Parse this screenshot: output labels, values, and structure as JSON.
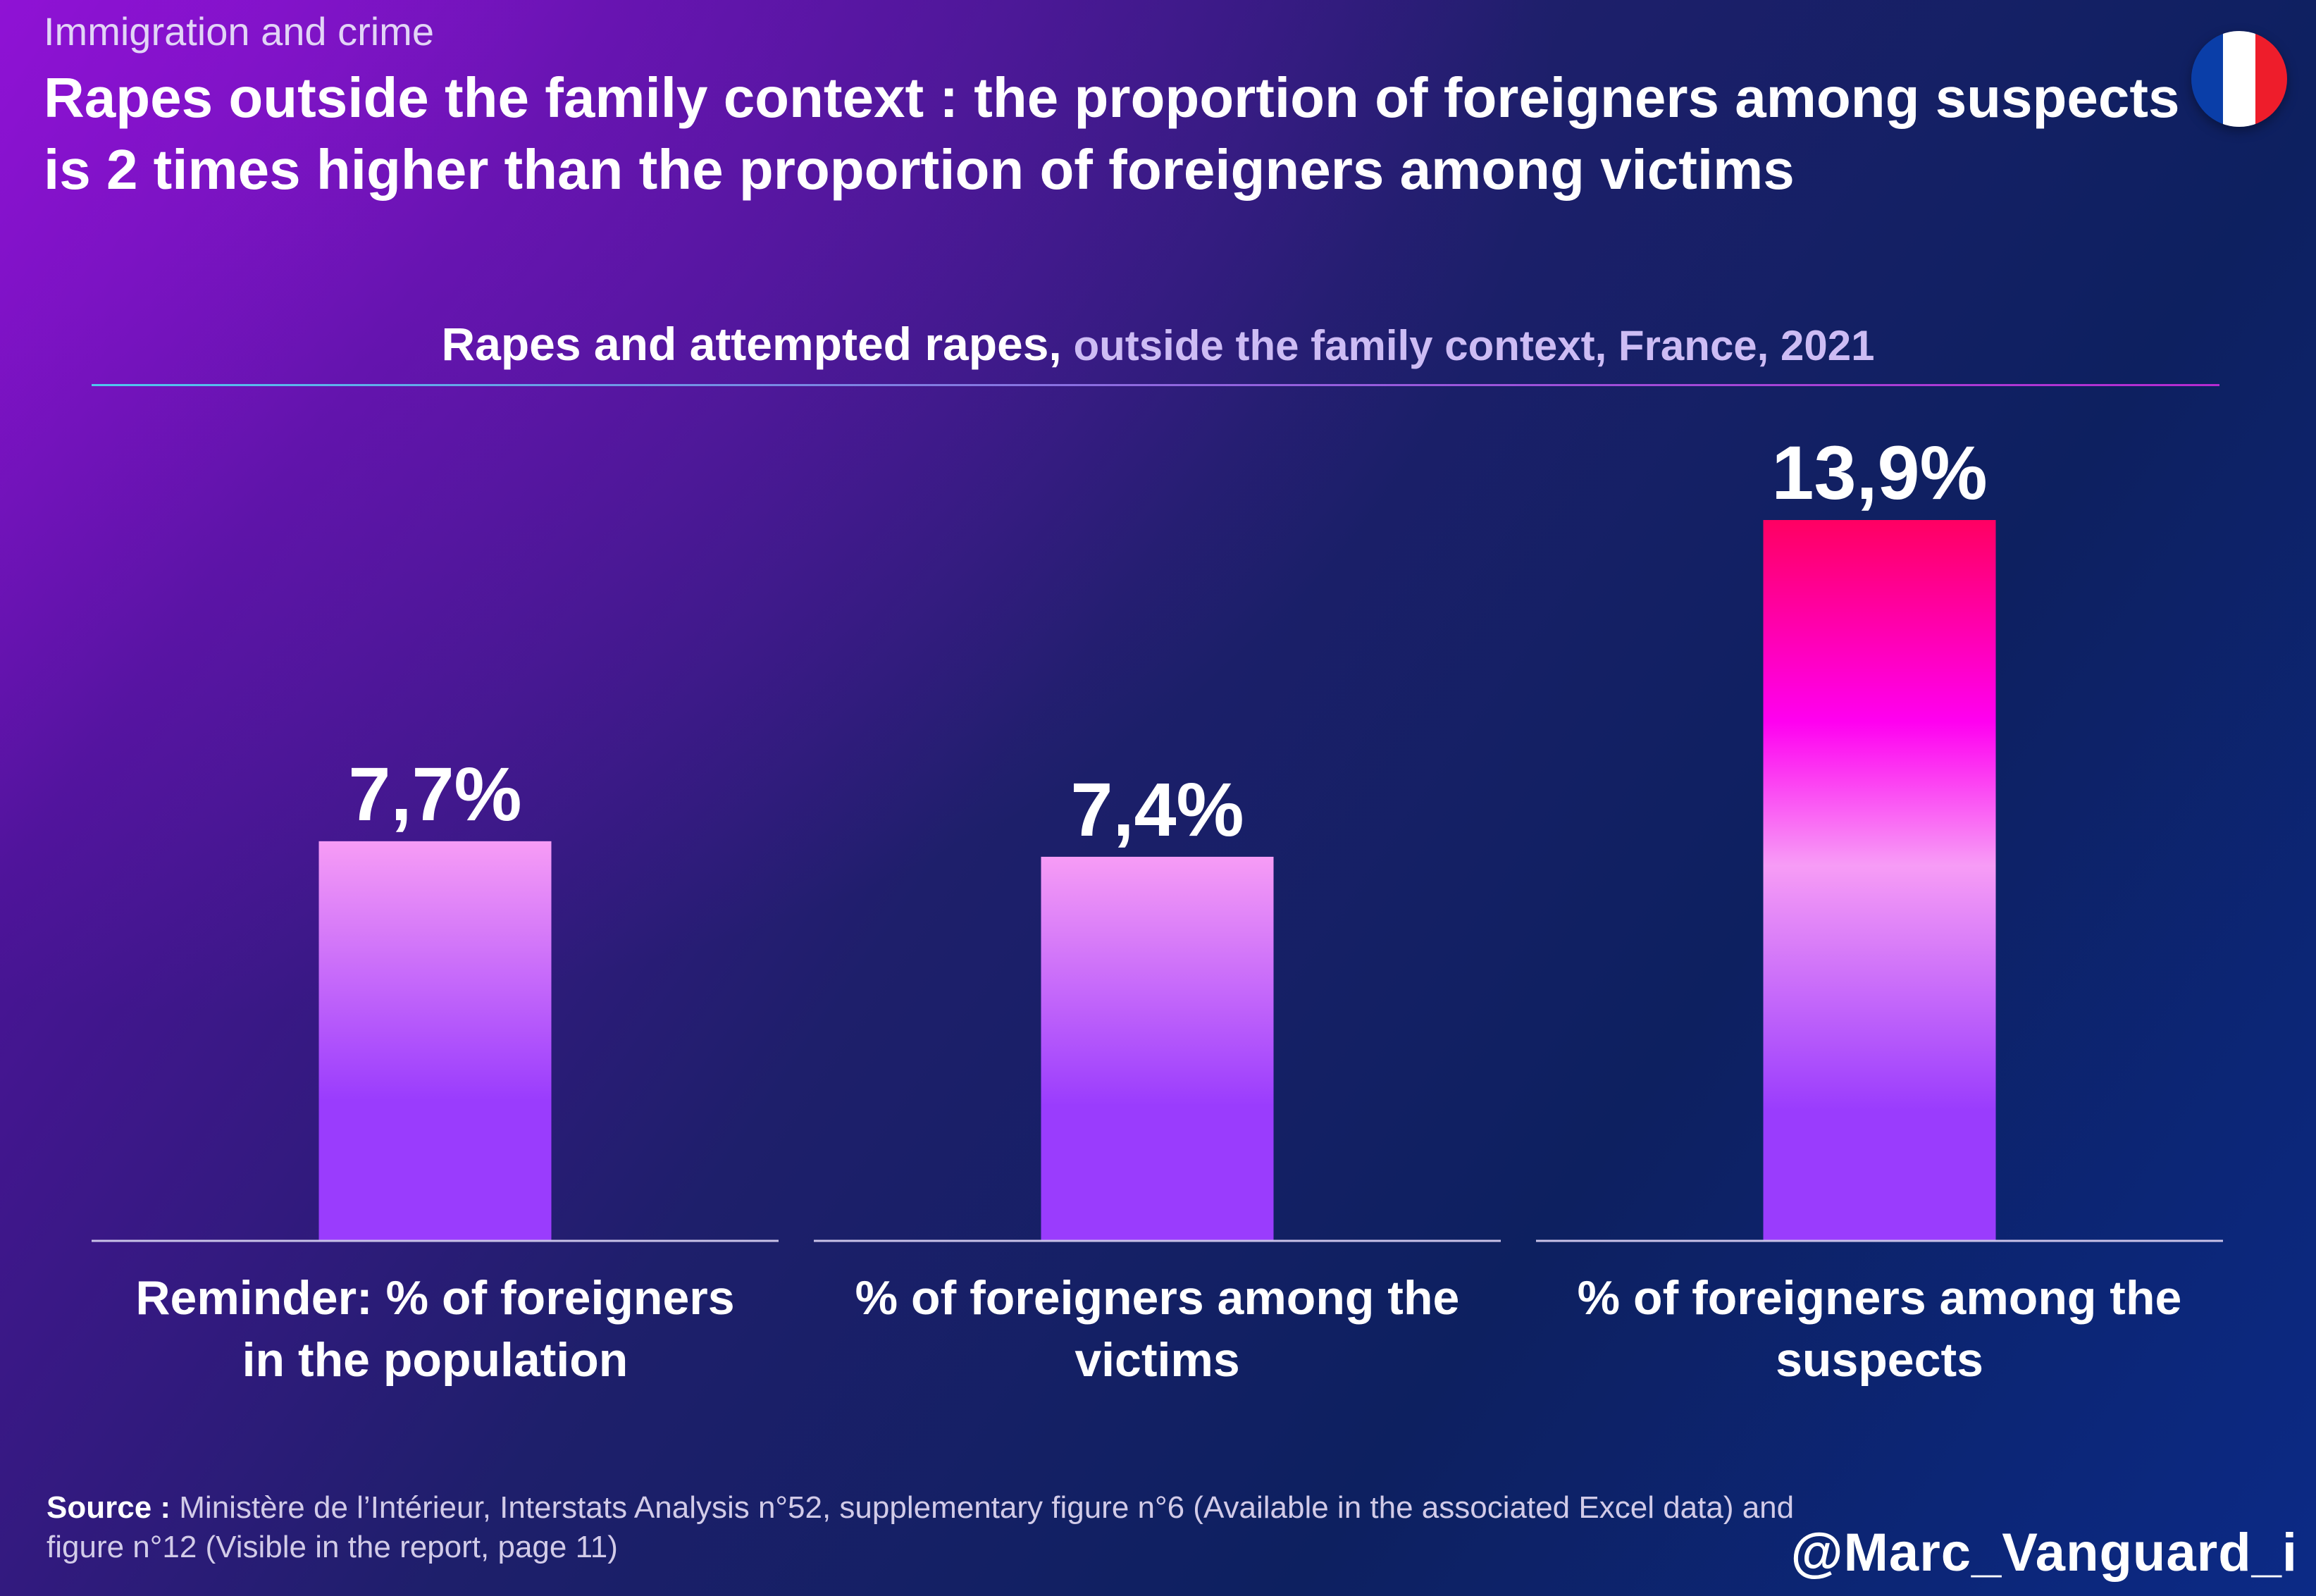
{
  "kicker": "Immigration and crime",
  "title": "Rapes outside the family context : the proportion of foreigners among suspects is 2 times higher than the proportion of foreigners among victims",
  "subtitle_main": "Rapes and attempted rapes,",
  "subtitle_rest": " outside the family context, France, 2021",
  "flag_colors": [
    "#0a3ea8",
    "#ffffff",
    "#ee1d2b"
  ],
  "colors": {
    "bar_top": "#f79cf6",
    "bar_bottom": "#9a3cfd",
    "highlight_top": "#ff0062",
    "highlight_mid": "#ff00f0",
    "highlight_pale": "#f79cf6",
    "highlight_bottom": "#9a3cfd",
    "baseline": "#c9c2e8"
  },
  "chart_data": {
    "type": "bar",
    "title": "Rapes and attempted rapes, outside the family context, France, 2021",
    "categories": [
      "Reminder: % of foreigners in the population",
      "% of foreigners among the victims",
      "% of foreigners among the suspects"
    ],
    "category_lines": [
      [
        "Reminder: % of foreigners",
        "in the population"
      ],
      [
        "% of foreigners among the",
        "victims"
      ],
      [
        "% of foreigners among the",
        "suspects"
      ]
    ],
    "values": [
      7.7,
      7.4,
      13.9
    ],
    "value_labels": [
      "7,7%",
      "7,4%",
      "13,9%"
    ],
    "unit": "%",
    "highlight_index": 2,
    "ylim": [
      0,
      13.9
    ],
    "grid": false,
    "legend": "none"
  },
  "source_label": "Source :",
  "source_text": " Ministère de l’Intérieur, Interstats Analysis n°52, supplementary figure n°6 (Available in the associated Excel data) and figure n°12 (Visible in the report, page 11)",
  "handle": "@Marc_Vanguard_i"
}
